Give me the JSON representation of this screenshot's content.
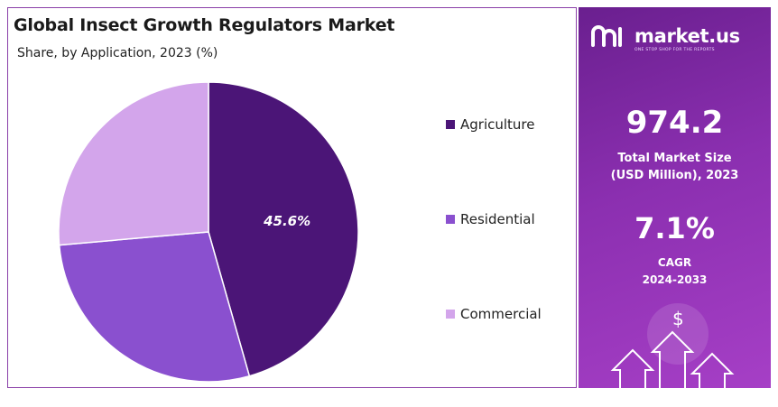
{
  "chart_data": {
    "type": "pie",
    "title": "Global Insect Growth Regulators Market",
    "subtitle": "Share, by Application, 2023 (%)",
    "categories": [
      "Agriculture",
      "Residential",
      "Commercial"
    ],
    "values": [
      45.6,
      28.0,
      26.4
    ],
    "data_labels": [
      "45.6%",
      "",
      ""
    ],
    "colors": [
      "#4b1577",
      "#8a50cf",
      "#d3a5eb"
    ],
    "legend_position": "right"
  },
  "brand": {
    "name": "market.us",
    "tagline": "ONE STOP SHOP FOR THE REPORTS"
  },
  "stats": {
    "market_size_value": "974.2",
    "market_size_label_1": "Total Market Size",
    "market_size_label_2": "(USD Million), 2023",
    "cagr_value": "7.1%",
    "cagr_label_1": "CAGR",
    "cagr_label_2": "2024-2033"
  },
  "icons": [
    "dollar-icon",
    "arrow-up-icon"
  ]
}
